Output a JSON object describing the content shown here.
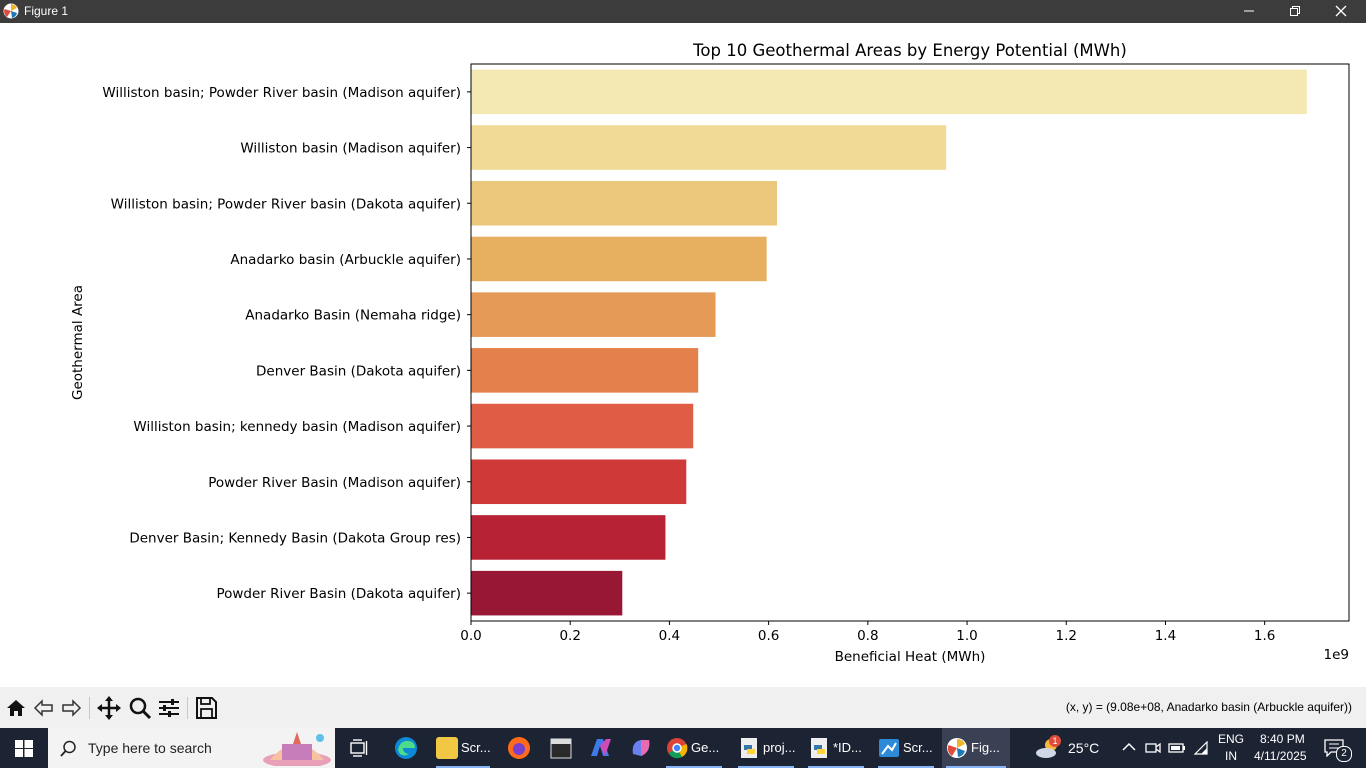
{
  "window": {
    "title": "Figure 1"
  },
  "chart_data": {
    "type": "bar",
    "orientation": "horizontal",
    "title": "Top 10 Geothermal Areas by Energy Potential (MWh)",
    "xlabel": "Beneficial Heat (MWh)",
    "ylabel": "Geothermal Area",
    "x_scale_label": "1e9",
    "xlim": [
      0,
      1.77
    ],
    "xticks": [
      "0.0",
      "0.2",
      "0.4",
      "0.6",
      "0.8",
      "1.0",
      "1.2",
      "1.4",
      "1.6"
    ],
    "categories": [
      "Williston basin; Powder River basin (Madison aquifer)",
      "Williston basin (Madison aquifer)",
      "Williston basin; Powder River basin (Dakota aquifer)",
      "Anadarko basin (Arbuckle aquifer)",
      "Anadarko Basin (Nemaha ridge)",
      "Denver Basin (Dakota aquifer)",
      "Williston basin; kennedy basin (Madison aquifer)",
      "Powder River Basin (Madison aquifer)",
      "Denver Basin; Kennedy Basin (Dakota Group res)",
      "Powder River Basin (Dakota aquifer)"
    ],
    "values": [
      1.685,
      0.958,
      0.617,
      0.596,
      0.493,
      0.458,
      0.448,
      0.434,
      0.392,
      0.305
    ],
    "colors": [
      "#f4e9b3",
      "#f0da96",
      "#ecc87d",
      "#e7b060",
      "#e69a57",
      "#e3804c",
      "#df5c45",
      "#cf3a38",
      "#b72235",
      "#971735"
    ],
    "grid": false,
    "legend": "none"
  },
  "toolbar": {
    "buttons": [
      {
        "name": "home",
        "icon": "home-icon"
      },
      {
        "name": "back",
        "icon": "back-arrow-icon"
      },
      {
        "name": "forward",
        "icon": "forward-arrow-icon"
      },
      {
        "name": "pan",
        "icon": "move-icon"
      },
      {
        "name": "zoom",
        "icon": "magnifier-icon"
      },
      {
        "name": "configure",
        "icon": "sliders-icon"
      },
      {
        "name": "save",
        "icon": "floppy-disk-icon"
      }
    ],
    "coords": "(x, y) = (9.08e+08, Anadarko basin (Arbuckle aquifer))"
  },
  "taskbar": {
    "search_placeholder": "Type here to search",
    "apps": [
      {
        "label": "Scr...",
        "color": "#f2c744"
      },
      {
        "label": "Ge...",
        "color": "#4285f4"
      },
      {
        "label": "proj...",
        "color": "#3776ab"
      },
      {
        "label": "*ID...",
        "color": "#3776ab"
      },
      {
        "label": "Scr...",
        "color": "#2d8ad9"
      },
      {
        "label": "Fig...",
        "color": "#ffffff"
      }
    ],
    "weather": "25°C",
    "weather_badge": "1",
    "lang_top": "ENG",
    "lang_bottom": "IN",
    "time": "8:40 PM",
    "date": "4/11/2025",
    "notification_count": "2"
  }
}
